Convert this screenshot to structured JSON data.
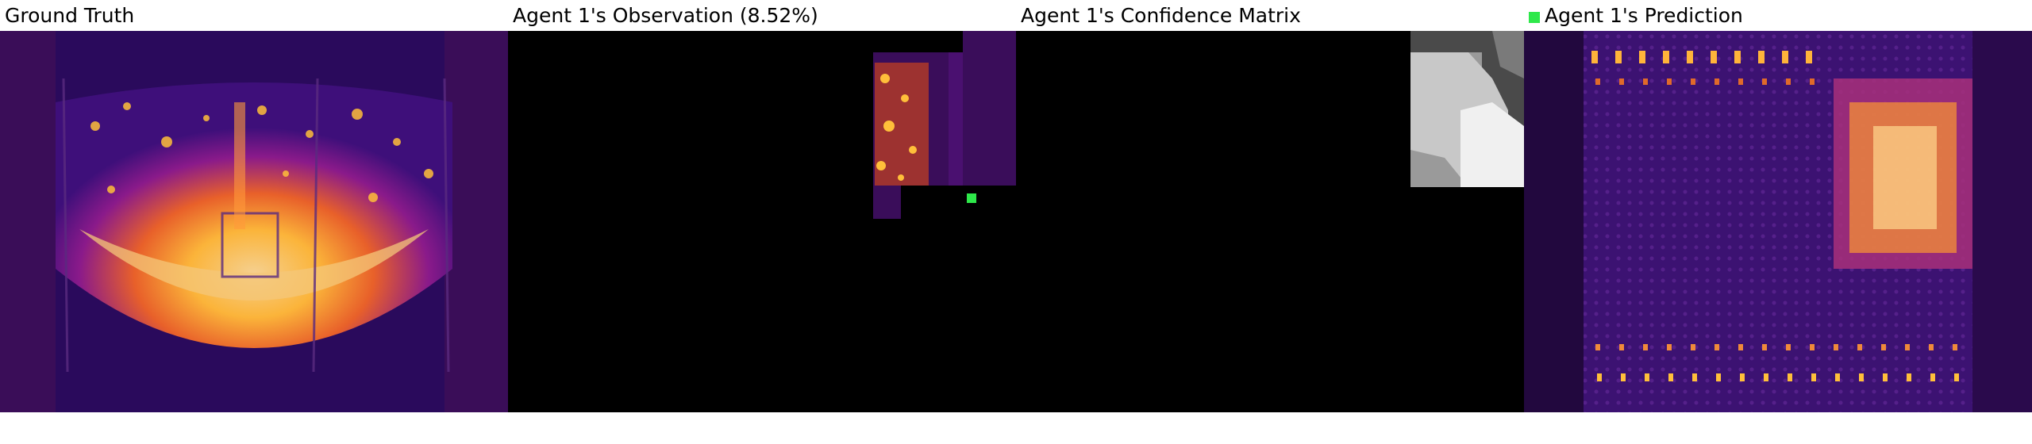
{
  "panels": {
    "ground_truth": {
      "title": "Ground Truth"
    },
    "observation": {
      "title": "Agent 1's Observation (8.52%)"
    },
    "confidence": {
      "title": "Agent 1's Confidence Matrix"
    },
    "prediction": {
      "title": "Agent 1's Prediction"
    }
  },
  "colors": {
    "agent_marker": "#2ee84a",
    "background": "#ffffff",
    "mask": "#000000"
  }
}
